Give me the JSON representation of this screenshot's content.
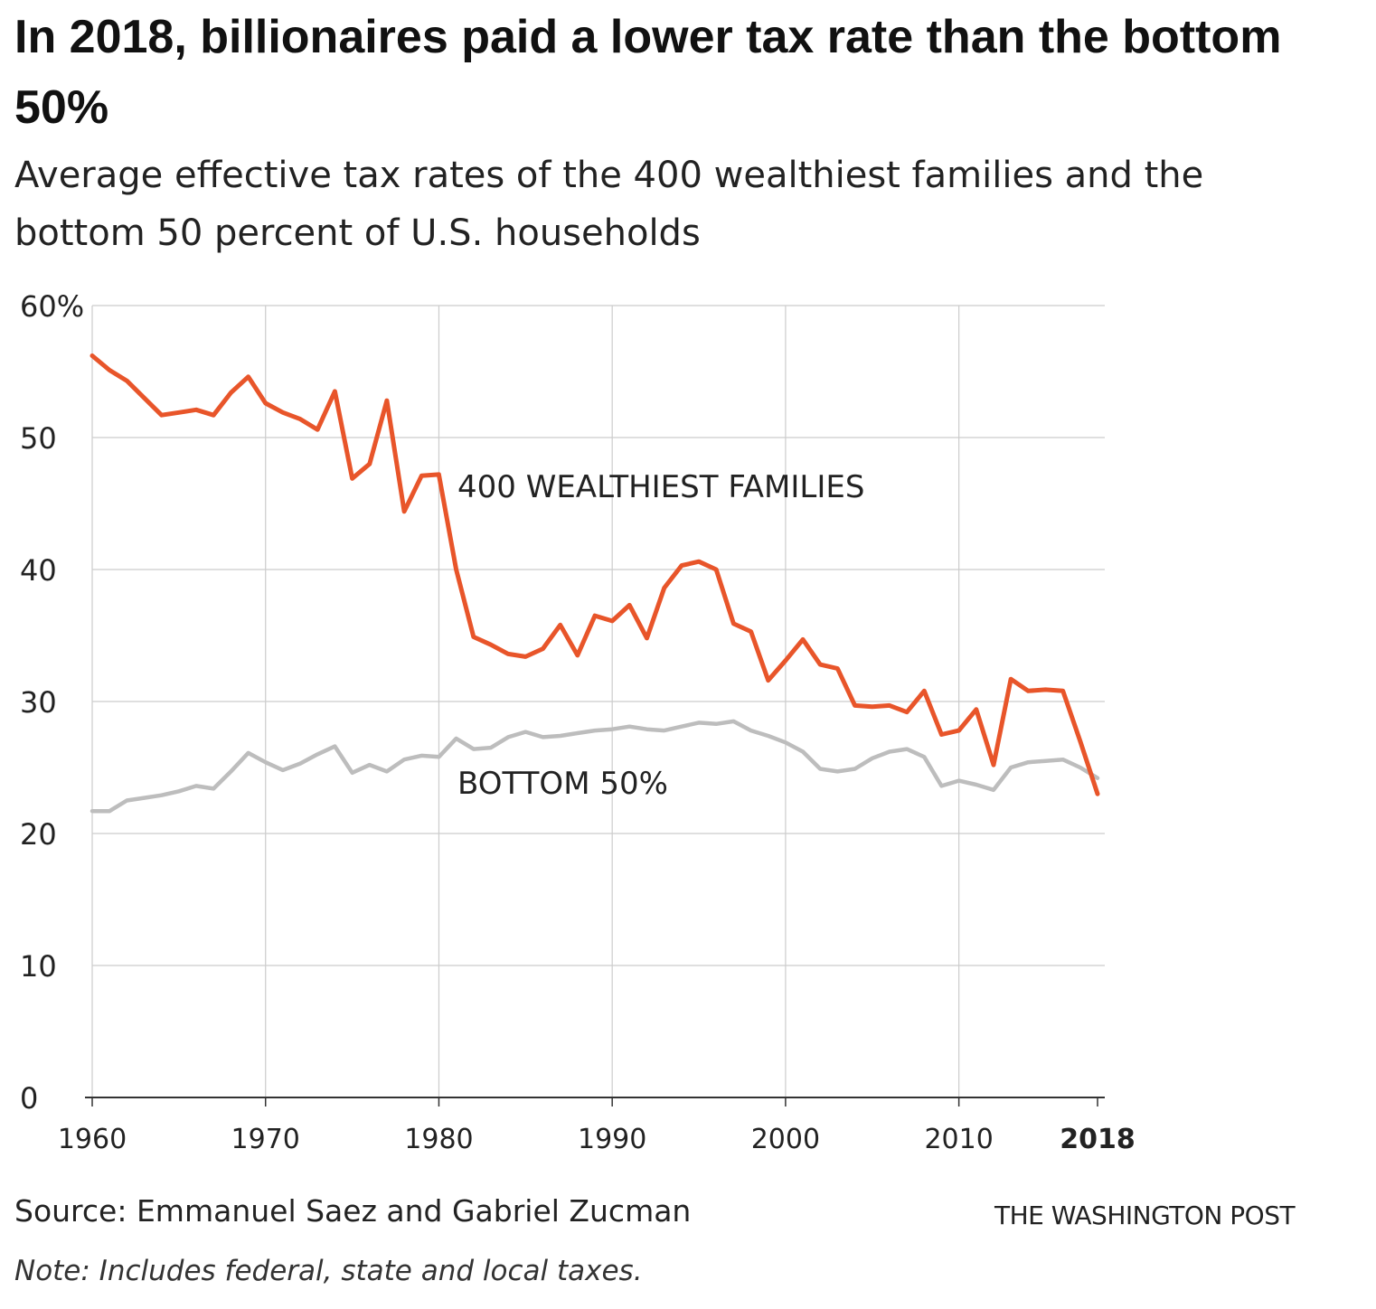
{
  "header": {
    "title": "In 2018, billionaires paid a lower tax rate than the bottom 50%",
    "subtitle": "Average effective tax rates of the 400 wealthiest families and the bottom 50 percent of U.S. households"
  },
  "footer": {
    "source": "Source: Emmanuel Saez and Gabriel Zucman",
    "note": "Note: Includes federal, state and local taxes.",
    "credit": "THE WASHINGTON POST"
  },
  "colors": {
    "wealthiest": "#e8552a",
    "bottom": "#bdbdbd",
    "grid": "#cccccc",
    "axis": "#333333"
  },
  "chart_data": {
    "type": "line",
    "title": "In 2018, billionaires paid a lower tax rate than the bottom 50%",
    "subtitle": "Average effective tax rates of the 400 wealthiest families and the bottom 50 percent of U.S. households",
    "xlabel": "",
    "ylabel": "",
    "xlim": [
      1960,
      2018
    ],
    "ylim": [
      0,
      60
    ],
    "grid": true,
    "y_ticks": [
      0,
      10,
      20,
      30,
      40,
      50,
      60
    ],
    "y_tick_labels": [
      "0",
      "10",
      "20",
      "30",
      "40",
      "50",
      "60%"
    ],
    "x_ticks": [
      1960,
      1970,
      1980,
      1990,
      2000,
      2010,
      2018
    ],
    "x_tick_labels": [
      "1960",
      "1970",
      "1980",
      "1990",
      "2000",
      "2010",
      "2018"
    ],
    "x_bold_tick": "2018",
    "x": [
      1960,
      1961,
      1962,
      1963,
      1964,
      1965,
      1966,
      1967,
      1968,
      1969,
      1970,
      1971,
      1972,
      1973,
      1974,
      1975,
      1976,
      1977,
      1978,
      1979,
      1980,
      1981,
      1982,
      1983,
      1984,
      1985,
      1986,
      1987,
      1988,
      1989,
      1990,
      1991,
      1992,
      1993,
      1994,
      1995,
      1996,
      1997,
      1998,
      1999,
      2000,
      2001,
      2002,
      2003,
      2004,
      2005,
      2006,
      2007,
      2008,
      2009,
      2010,
      2011,
      2012,
      2013,
      2014,
      2015,
      2016,
      2017,
      2018
    ],
    "series": [
      {
        "name": "400 WEALTHIEST FAMILIES",
        "values": [
          56.2,
          55.1,
          54.3,
          53.0,
          51.7,
          51.9,
          52.1,
          51.7,
          53.4,
          54.6,
          52.6,
          51.9,
          51.4,
          50.6,
          53.5,
          46.9,
          48.0,
          52.8,
          44.4,
          47.1,
          47.2,
          40.0,
          34.9,
          34.3,
          33.6,
          33.4,
          34.0,
          35.8,
          33.5,
          36.5,
          36.1,
          37.3,
          34.8,
          38.6,
          40.3,
          40.6,
          40.0,
          35.9,
          35.3,
          31.6,
          33.1,
          34.7,
          32.8,
          32.5,
          29.7,
          29.6,
          29.7,
          29.2,
          30.8,
          27.5,
          27.8,
          29.4,
          25.2,
          31.7,
          30.8,
          30.9,
          30.8,
          27.0,
          23.0
        ]
      },
      {
        "name": "BOTTOM 50%",
        "values": [
          21.7,
          21.7,
          22.5,
          22.7,
          22.9,
          23.2,
          23.6,
          23.4,
          24.7,
          26.1,
          25.4,
          24.8,
          25.3,
          26.0,
          26.6,
          24.6,
          25.2,
          24.7,
          25.6,
          25.9,
          25.8,
          27.2,
          26.4,
          26.5,
          27.3,
          27.7,
          27.3,
          27.4,
          27.6,
          27.8,
          27.9,
          28.1,
          27.9,
          27.8,
          28.1,
          28.4,
          28.3,
          28.5,
          27.8,
          27.4,
          26.9,
          26.2,
          24.9,
          24.7,
          24.9,
          25.7,
          26.2,
          26.4,
          25.8,
          23.6,
          24.0,
          23.7,
          23.3,
          25.0,
          25.4,
          25.5,
          25.6,
          25.0,
          24.2
        ]
      }
    ],
    "annotations": [
      {
        "text": "400 WEALTHIEST FAMILIES",
        "series": "400 WEALTHIEST FAMILIES"
      },
      {
        "text": "BOTTOM 50%",
        "series": "BOTTOM 50%"
      }
    ]
  }
}
